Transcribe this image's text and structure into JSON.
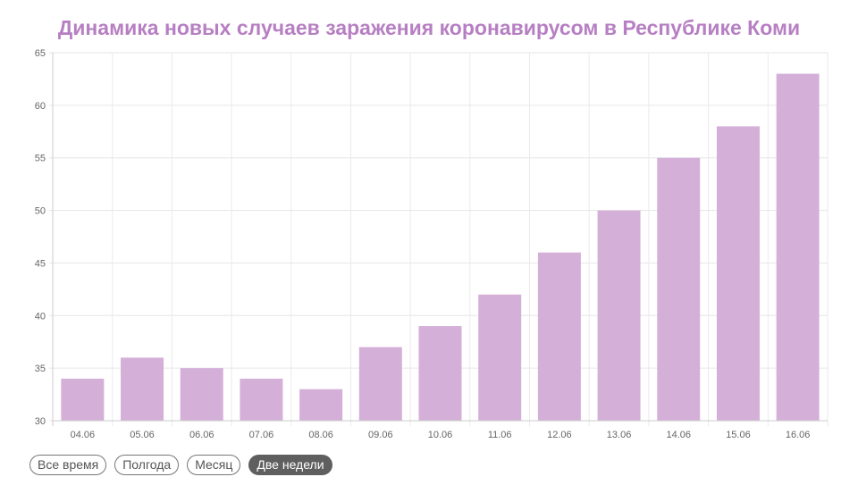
{
  "chart_data": {
    "type": "bar",
    "title": "Динамика новых случаев заражения коронавирусом в Республике Коми",
    "categories": [
      "04.06",
      "05.06",
      "06.06",
      "07.06",
      "08.06",
      "09.06",
      "10.06",
      "11.06",
      "12.06",
      "13.06",
      "14.06",
      "15.06",
      "16.06"
    ],
    "values": [
      34,
      36,
      35,
      34,
      33,
      37,
      39,
      42,
      46,
      50,
      55,
      58,
      63
    ],
    "ylim": [
      30,
      65
    ],
    "yticks": [
      30,
      35,
      40,
      45,
      50,
      55,
      60,
      65
    ],
    "xlabel": "",
    "ylabel": "",
    "grid": true,
    "bar_color": "#d4b0d8"
  },
  "range_buttons": [
    {
      "label": "Все время",
      "active": false
    },
    {
      "label": "Полгода",
      "active": false
    },
    {
      "label": "Месяц",
      "active": false
    },
    {
      "label": "Две недели",
      "active": true
    }
  ]
}
